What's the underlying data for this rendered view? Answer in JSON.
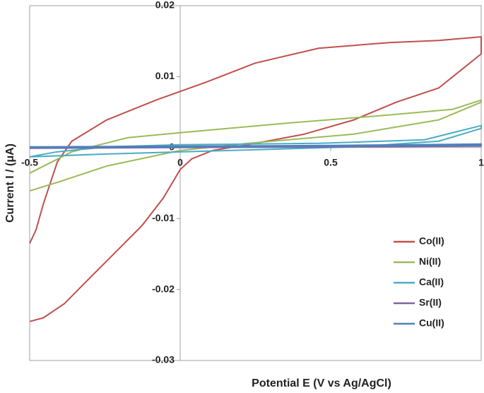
{
  "chart_data": {
    "type": "line",
    "x_label": "Potential E (V vs Ag/AgCl)",
    "y_label": "Current I / (μA)",
    "xlim": [
      -0.5,
      1
    ],
    "xticks": [
      -0.5,
      0,
      0.5,
      1
    ],
    "ylim": [
      -0.03,
      0.02
    ],
    "yticks": [
      0.02,
      0.01,
      0,
      -0.01,
      -0.02,
      -0.03
    ],
    "legend": "lower right",
    "series": [
      {
        "name": "Co(II)",
        "color": "#c0504d",
        "x": [
          -0.5,
          -0.479,
          -0.455,
          -0.408,
          -0.36,
          -0.244,
          -0.08,
          0.085,
          0.249,
          0.46,
          0.695,
          0.859,
          1.0,
          1.0,
          0.859,
          0.718,
          0.577,
          0.413,
          0.225,
          0.108,
          0.038,
          0,
          -0.056,
          -0.127,
          -0.221,
          -0.315,
          -0.385,
          -0.455,
          -0.5
        ],
        "values": [
          -0.0135,
          -0.0116,
          -0.008,
          -0.002,
          0.0009,
          0.0039,
          0.0067,
          0.0092,
          0.0119,
          0.014,
          0.0148,
          0.0151,
          0.0156,
          0.0132,
          0.0084,
          0.0064,
          0.0039,
          0.0019,
          0.0004,
          -0.0004,
          -0.0016,
          -0.0031,
          -0.0071,
          -0.011,
          -0.015,
          -0.019,
          -0.022,
          -0.024,
          -0.0245
        ]
      },
      {
        "name": "Ni(II)",
        "color": "#9bbb59",
        "x": [
          -0.5,
          -0.36,
          -0.174,
          0,
          0.343,
          0.695,
          0.906,
          1,
          1,
          0.859,
          0.577,
          0.225,
          0,
          -0.244,
          -0.408,
          -0.5
        ],
        "values": [
          -0.0036,
          -0.0006,
          0.0014,
          0.0021,
          0.0034,
          0.0046,
          0.0054,
          0.0067,
          0.0064,
          0.0039,
          0.0019,
          0.0006,
          -0.0004,
          -0.0026,
          -0.0049,
          -0.0061
        ]
      },
      {
        "name": "Ca(II)",
        "color": "#4bacc6",
        "x": [
          -0.5,
          -0.41,
          -0.244,
          0,
          0.46,
          0.812,
          1,
          1,
          0.859,
          0.577,
          0,
          -0.244,
          -0.5
        ],
        "values": [
          -0.0013,
          -0.0006,
          0.0001,
          0.0004,
          0.0006,
          0.0011,
          0.0031,
          0.0027,
          0.0009,
          0.0001,
          -0.0006,
          -0.0009,
          -0.0013
        ]
      },
      {
        "name": "Sr(II)",
        "color": "#8064a2",
        "x": [
          -0.5,
          0,
          0.5,
          1,
          1,
          0.5,
          0,
          -0.5
        ],
        "values": [
          5e-05,
          0.0001,
          0.0002,
          0.0004,
          0.0002,
          0.0001,
          0,
          -0.0001
        ]
      },
      {
        "name": "Cu(II)",
        "color": "#4f81bd",
        "x": [
          -0.5,
          0,
          0.5,
          1,
          1,
          0.5,
          0,
          -0.5
        ],
        "values": [
          0.0001,
          0.0002,
          0.0003,
          0.0005,
          0.0003,
          0.0002,
          0.0001,
          0
        ]
      }
    ]
  }
}
